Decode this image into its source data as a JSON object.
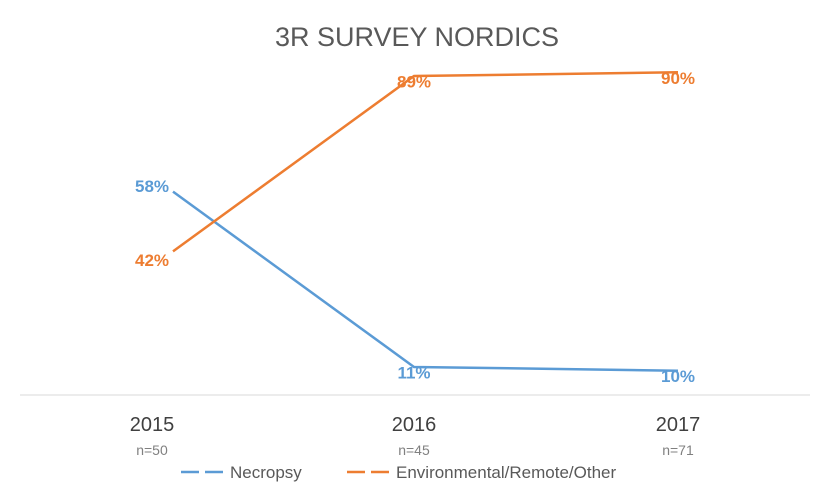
{
  "chart_data": {
    "type": "line",
    "title": "3R SURVEY NORDICS",
    "categories": [
      "2015",
      "2016",
      "2017"
    ],
    "category_subtitles": [
      "n=50",
      "n=45",
      "n=71"
    ],
    "ylim": [
      0,
      100
    ],
    "grid": false,
    "legend_position": "bottom",
    "series": [
      {
        "name": "Necropsy",
        "color": "#5B9BD5",
        "values": [
          58,
          11,
          10
        ],
        "labels": [
          "58%",
          "11%",
          "10%"
        ]
      },
      {
        "name": "Environmental/Remote/Other",
        "color": "#ED7D31",
        "values": [
          42,
          89,
          90
        ],
        "labels": [
          "42%",
          "89%",
          "90%"
        ]
      }
    ]
  }
}
